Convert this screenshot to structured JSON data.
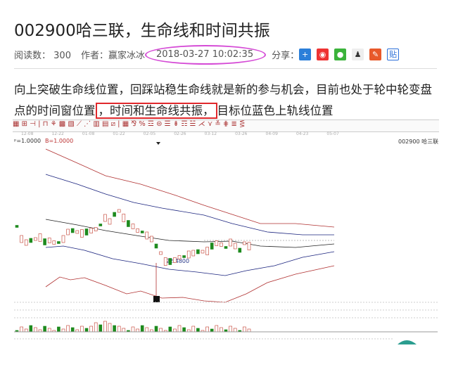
{
  "article": {
    "title": "002900哈三联，生命线和时间共振",
    "read_label": "阅读数：",
    "read_count": "300",
    "author_label": "作者：",
    "author": "赢家冰冰",
    "datetime": "2018-03-27 10:02:35",
    "share_label": "分享：",
    "share_icons": [
      "plus-icon",
      "weibo-icon",
      "wechat-icon",
      "qq-icon",
      "tencent-weibo-icon",
      "tieba-icon"
    ],
    "para_1": "向上突破生命线位置，回踩站稳生命线就是新的参与机会，目前也处于轮中轮变盘点的时间窗位置",
    "para_highlight": "，时间和生命线共振，",
    "para_2": "目标位蓝色上轨线位置"
  },
  "chart": {
    "toolbar": "▦ ⊞ ⊣ | ⊓ ⚘ ▩ ▧ ⟋ ⋰ ▥ ▤ ⧄ | ▦ ⅋ % ☲ ⊜ ☰ ⇟ ☶ ☱ ⋌ ⋎ ≚ ⋕ ≣ ⋚",
    "dates": [
      "12-08",
      "12-22",
      "01-08",
      "01-22",
      "02-05",
      "02-26",
      "03-12",
      "03-26",
      "04-09",
      "04-23",
      "05-07"
    ],
    "label_left": "ᵖ=1.0000",
    "label_left2": "B=1.0000",
    "stock": "002900 哈三联",
    "low_label": "22.4800",
    "colors": {
      "up": "#c0392b",
      "down": "#1e8a1e",
      "band_outer": "#b03030",
      "band_inner": "#1a237e"
    }
  }
}
